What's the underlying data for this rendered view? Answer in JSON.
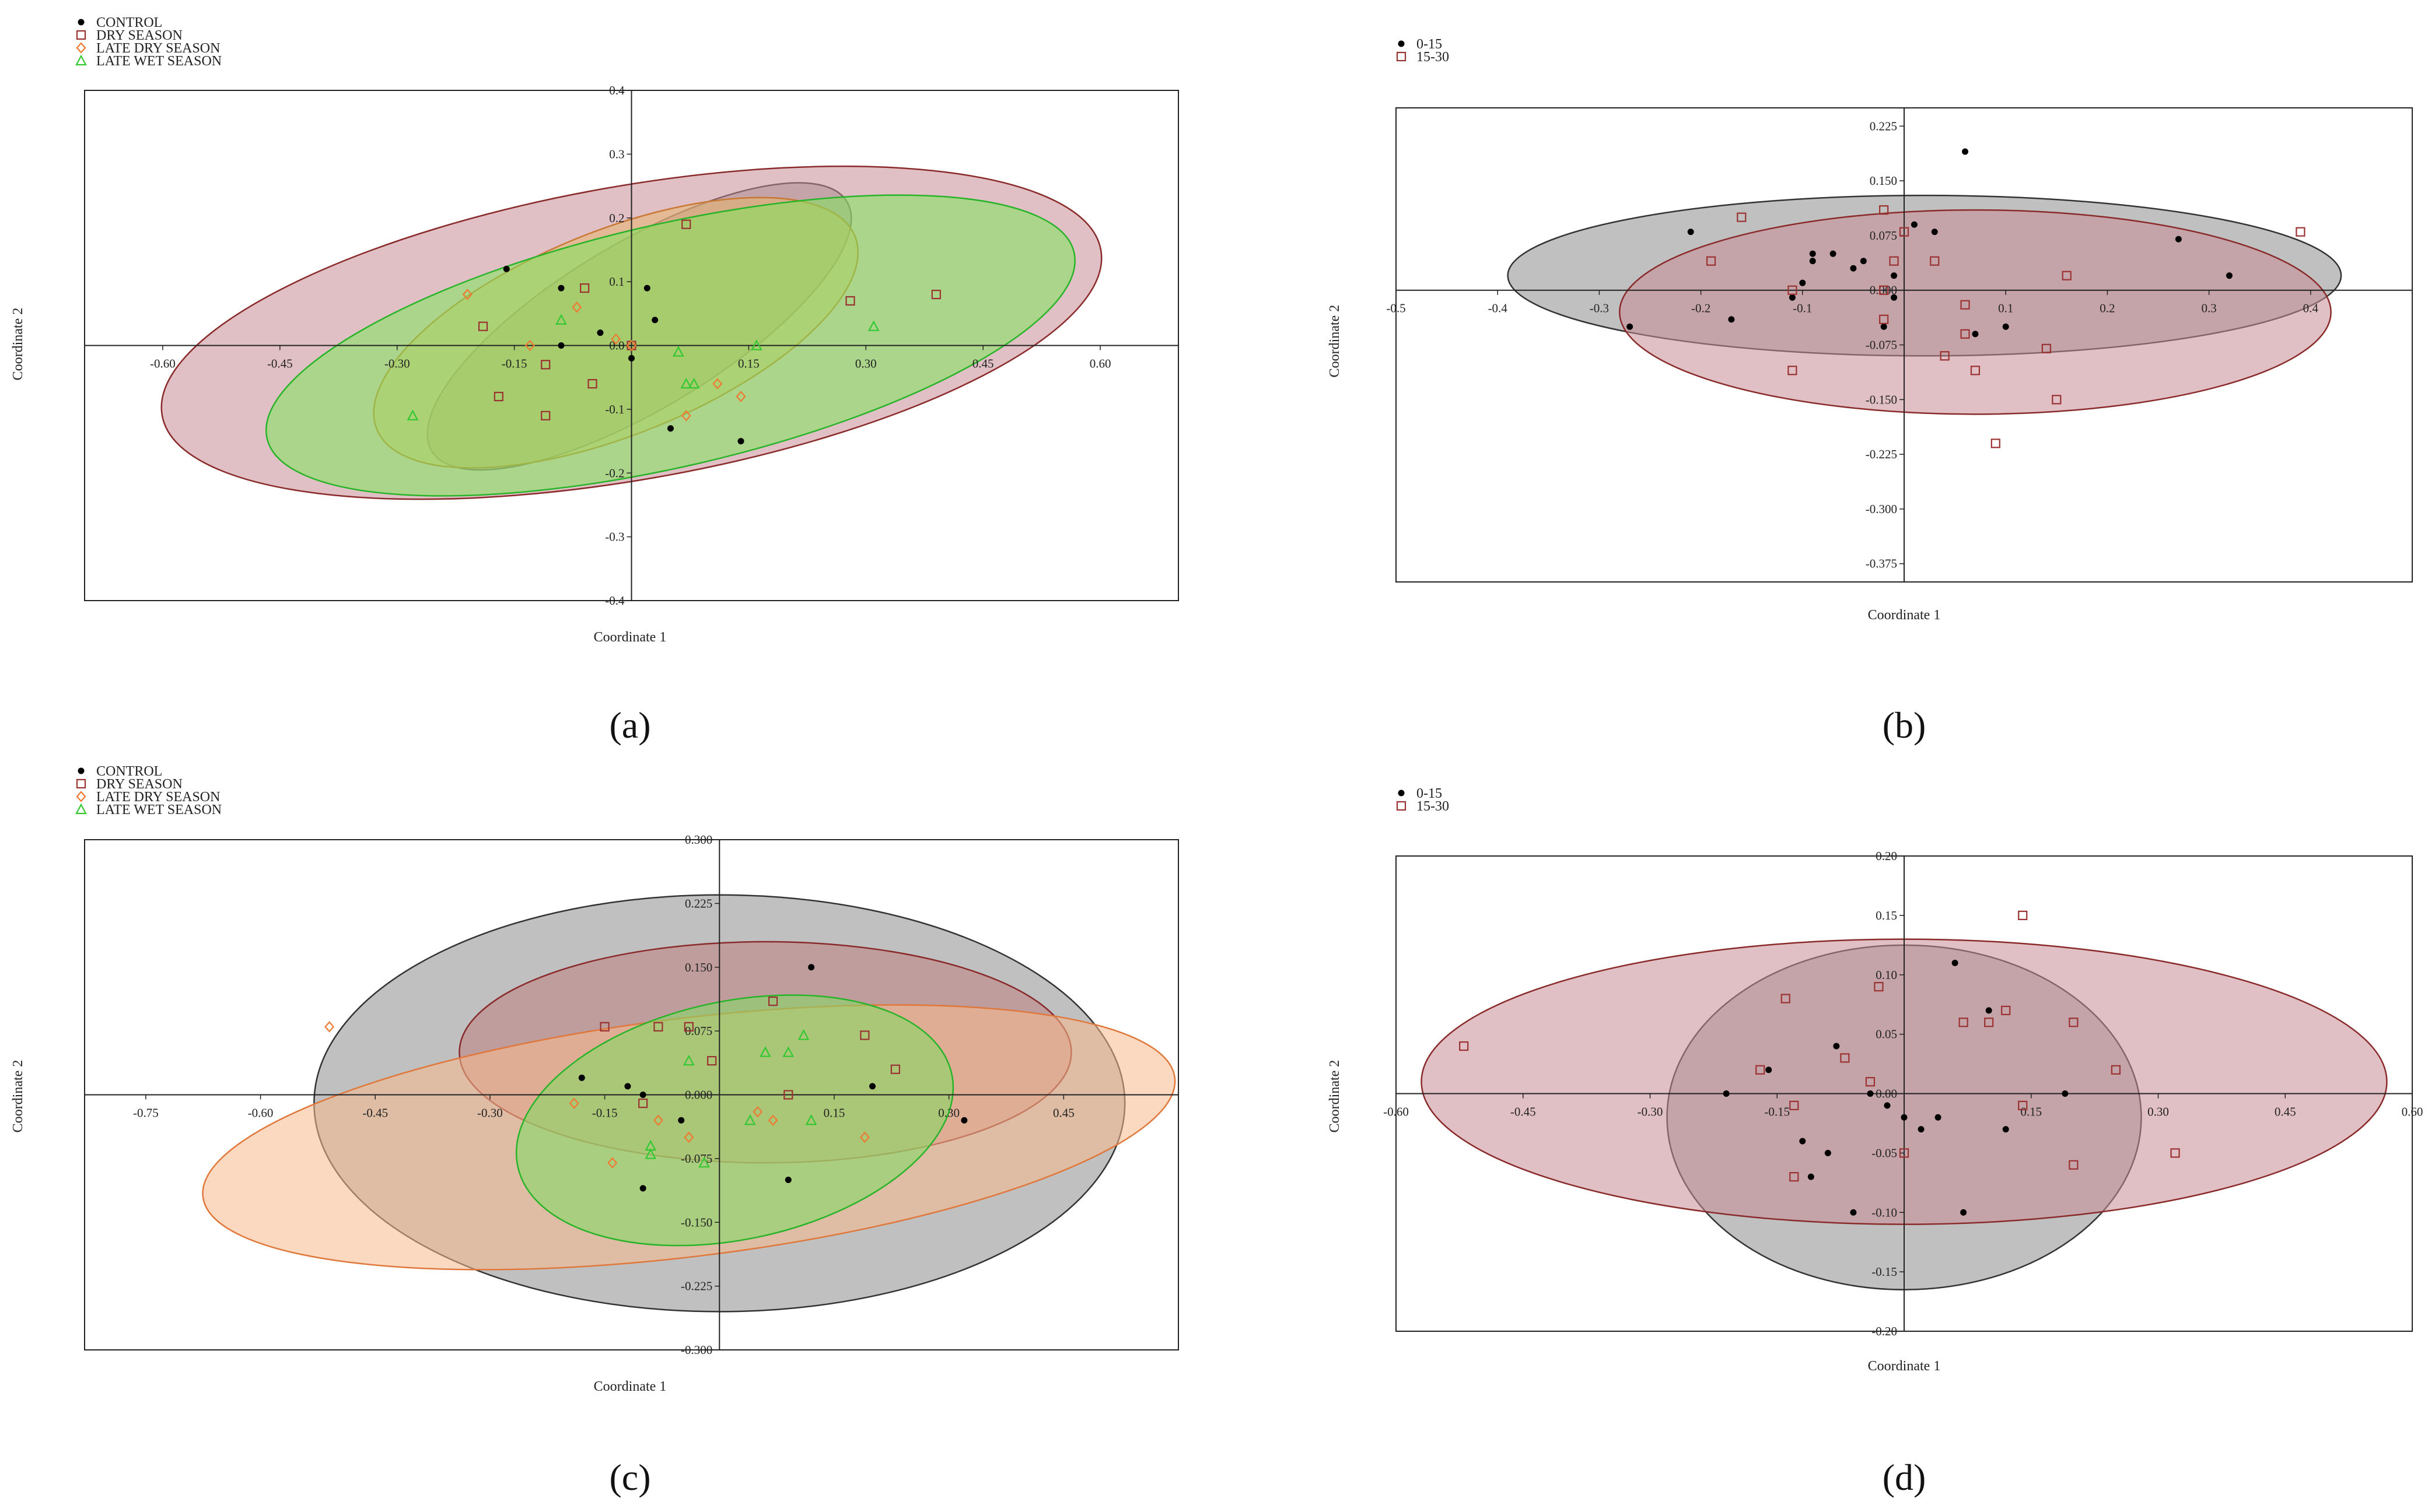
{
  "figure": {
    "panels": [
      "a",
      "b",
      "c",
      "d"
    ]
  },
  "chart_data": [
    {
      "id": "a",
      "caption": "(a)",
      "type": "scatter",
      "xlabel": "Coordinate 1",
      "ylabel": "Coordinate 2",
      "xlim": [
        -0.7,
        0.7
      ],
      "ylim": [
        -0.4,
        0.4
      ],
      "xticks": [
        -0.6,
        -0.45,
        -0.3,
        -0.15,
        0.15,
        0.3,
        0.45,
        0.6
      ],
      "xtick_labels": [
        "-0.60",
        "-0.45",
        "-0.30",
        "-0.15",
        "0.15",
        "0.30",
        "0.45",
        "0.60"
      ],
      "yticks": [
        0.4,
        0.3,
        0.2,
        0.1,
        0.0,
        -0.1,
        -0.2,
        -0.3,
        -0.4
      ],
      "ytick_labels": [
        "0.4",
        "0.3",
        "0.2",
        "0.1",
        "0.0",
        "-0.1",
        "-0.2",
        "-0.3",
        "-0.4"
      ],
      "legend": {
        "position": "top-left",
        "entries": [
          "CONTROL",
          "DRY SEASON",
          "LATE DRY SEASON",
          "LATE WET SEASON"
        ]
      },
      "series": [
        {
          "name": "CONTROL",
          "marker": "dot",
          "color": "#000000",
          "ellipse": {
            "cx": 0.01,
            "cy": 0.03,
            "rx": 0.31,
            "ry": 0.13,
            "angle": -31,
            "fill": "#8c8c8c",
            "stroke": "#333333"
          },
          "points": [
            [
              -0.16,
              0.12
            ],
            [
              -0.09,
              0.09
            ],
            [
              -0.09,
              0.0
            ],
            [
              -0.04,
              0.02
            ],
            [
              0.0,
              -0.02
            ],
            [
              0.02,
              0.09
            ],
            [
              0.03,
              0.04
            ],
            [
              0.05,
              -0.13
            ],
            [
              0.14,
              -0.15
            ]
          ]
        },
        {
          "name": "DRY SEASON",
          "marker": "square",
          "color": "#9b3232",
          "ellipse": {
            "cx": 0.0,
            "cy": 0.02,
            "rx": 0.61,
            "ry": 0.23,
            "angle": -10,
            "fill": "#c88c96",
            "stroke": "#8a2a2a"
          },
          "points": [
            [
              -0.19,
              0.03
            ],
            [
              -0.17,
              -0.08
            ],
            [
              -0.11,
              -0.03
            ],
            [
              -0.11,
              -0.11
            ],
            [
              -0.06,
              0.09
            ],
            [
              -0.05,
              -0.06
            ],
            [
              0.0,
              0.0
            ],
            [
              0.07,
              0.19
            ],
            [
              0.28,
              0.07
            ],
            [
              0.39,
              0.08
            ]
          ]
        },
        {
          "name": "LATE DRY SEASON",
          "marker": "diamond",
          "color": "#f07830",
          "ellipse": {
            "cx": -0.02,
            "cy": 0.02,
            "rx": 0.33,
            "ry": 0.16,
            "angle": -22,
            "fill": "#e6b46e",
            "stroke": "#c87832"
          },
          "points": [
            [
              -0.21,
              0.08
            ],
            [
              -0.13,
              0.0
            ],
            [
              -0.07,
              0.06
            ],
            [
              -0.02,
              0.01
            ],
            [
              0.0,
              0.0
            ],
            [
              0.07,
              -0.11
            ],
            [
              0.11,
              -0.06
            ],
            [
              0.14,
              -0.08
            ]
          ]
        },
        {
          "name": "LATE WET SEASON",
          "marker": "triangle",
          "color": "#32c832",
          "ellipse": {
            "cx": 0.05,
            "cy": 0.0,
            "rx": 0.53,
            "ry": 0.19,
            "angle": -13,
            "fill": "#7ee65a",
            "stroke": "#28b428"
          },
          "points": [
            [
              -0.28,
              -0.11
            ],
            [
              -0.09,
              0.04
            ],
            [
              0.06,
              -0.01
            ],
            [
              0.07,
              -0.06
            ],
            [
              0.08,
              -0.06
            ],
            [
              0.16,
              0.0
            ],
            [
              0.31,
              0.03
            ]
          ]
        }
      ]
    },
    {
      "id": "b",
      "caption": "(b)",
      "type": "scatter",
      "xlabel": "Coordinate 1",
      "ylabel": "Coordinate 2",
      "xlim": [
        -0.5,
        0.5
      ],
      "ylim": [
        -0.4,
        0.25
      ],
      "xticks": [
        -0.5,
        -0.4,
        -0.3,
        -0.2,
        -0.1,
        0.1,
        0.2,
        0.3,
        0.4
      ],
      "xtick_labels": [
        "-0.5",
        "-0.4",
        "-0.3",
        "-0.2",
        "-0.1",
        "0.1",
        "0.2",
        "0.3",
        "0.4"
      ],
      "yticks": [
        0.225,
        0.15,
        0.075,
        0.0,
        -0.075,
        -0.15,
        -0.225,
        -0.3,
        -0.375
      ],
      "ytick_labels": [
        "0.225",
        "0.150",
        "0.075",
        "0.000",
        "-0.075",
        "-0.150",
        "-0.225",
        "-0.300",
        "-0.375"
      ],
      "legend": {
        "position": "top-left",
        "entries": [
          "0-15",
          "15-30"
        ]
      },
      "series": [
        {
          "name": "0-15",
          "marker": "dot",
          "color": "#000000",
          "ellipse": {
            "cx": 0.02,
            "cy": 0.02,
            "rx": 0.41,
            "ry": 0.11,
            "angle": 0,
            "fill": "#8c8c8c",
            "stroke": "#333333"
          },
          "points": [
            [
              -0.27,
              -0.05
            ],
            [
              -0.21,
              0.08
            ],
            [
              -0.17,
              -0.04
            ],
            [
              -0.11,
              -0.01
            ],
            [
              -0.1,
              0.01
            ],
            [
              -0.09,
              0.05
            ],
            [
              -0.09,
              0.04
            ],
            [
              -0.07,
              0.05
            ],
            [
              -0.05,
              0.03
            ],
            [
              -0.04,
              0.04
            ],
            [
              -0.01,
              0.02
            ],
            [
              -0.02,
              -0.05
            ],
            [
              -0.01,
              -0.01
            ],
            [
              0.01,
              0.09
            ],
            [
              0.03,
              0.08
            ],
            [
              0.06,
              0.19
            ],
            [
              0.07,
              -0.06
            ],
            [
              0.1,
              -0.05
            ],
            [
              0.27,
              0.07
            ],
            [
              0.32,
              0.02
            ]
          ]
        },
        {
          "name": "15-30",
          "marker": "square",
          "color": "#9b3232",
          "ellipse": {
            "cx": 0.07,
            "cy": -0.03,
            "rx": 0.35,
            "ry": 0.14,
            "angle": 0,
            "fill": "#c88c96",
            "stroke": "#8a2a2a"
          },
          "points": [
            [
              -0.19,
              0.04
            ],
            [
              -0.16,
              0.1
            ],
            [
              -0.11,
              -0.11
            ],
            [
              -0.11,
              0.0
            ],
            [
              -0.02,
              -0.04
            ],
            [
              -0.02,
              0.11
            ],
            [
              -0.01,
              0.04
            ],
            [
              -0.02,
              0.0
            ],
            [
              0.0,
              0.08
            ],
            [
              0.03,
              0.04
            ],
            [
              0.04,
              -0.09
            ],
            [
              0.06,
              -0.02
            ],
            [
              0.06,
              -0.06
            ],
            [
              0.07,
              -0.11
            ],
            [
              0.09,
              -0.21
            ],
            [
              0.14,
              -0.08
            ],
            [
              0.15,
              -0.15
            ],
            [
              0.16,
              0.02
            ],
            [
              0.39,
              0.08
            ]
          ]
        }
      ]
    },
    {
      "id": "c",
      "caption": "(c)",
      "type": "scatter",
      "xlabel": "Coordinate 1",
      "ylabel": "Coordinate 2",
      "xlim": [
        -0.83,
        0.6
      ],
      "ylim": [
        -0.3,
        0.3
      ],
      "xticks": [
        -0.75,
        -0.6,
        -0.45,
        -0.3,
        -0.15,
        0.15,
        0.3,
        0.45
      ],
      "xtick_labels": [
        "-0.75",
        "-0.60",
        "-0.45",
        "-0.30",
        "-0.15",
        "0.15",
        "0.30",
        "0.45"
      ],
      "yticks": [
        0.3,
        0.225,
        0.15,
        0.075,
        0.0,
        -0.075,
        -0.15,
        -0.225,
        -0.3
      ],
      "ytick_labels": [
        "0.300",
        "0.225",
        "0.150",
        "0.075",
        "0.000",
        "-0.075",
        "-0.150",
        "-0.225",
        "-0.300"
      ],
      "legend": {
        "position": "top-left",
        "entries": [
          "CONTROL",
          "DRY SEASON",
          "LATE DRY SEASON",
          "LATE WET SEASON"
        ]
      },
      "series": [
        {
          "name": "CONTROL",
          "marker": "dot",
          "color": "#000000",
          "ellipse": {
            "cx": 0.0,
            "cy": -0.01,
            "rx": 0.53,
            "ry": 0.245,
            "angle": 0,
            "fill": "#8c8c8c",
            "stroke": "#333333"
          },
          "points": [
            [
              -0.18,
              0.02
            ],
            [
              -0.12,
              0.01
            ],
            [
              -0.1,
              0.0
            ],
            [
              -0.1,
              -0.11
            ],
            [
              -0.05,
              -0.03
            ],
            [
              0.09,
              -0.1
            ],
            [
              0.12,
              0.15
            ],
            [
              0.2,
              0.01
            ],
            [
              0.32,
              -0.03
            ]
          ]
        },
        {
          "name": "DRY SEASON",
          "marker": "square",
          "color": "#9b3232",
          "ellipse": {
            "cx": 0.06,
            "cy": 0.05,
            "rx": 0.4,
            "ry": 0.13,
            "angle": 0,
            "fill": "#c08080",
            "stroke": "#8a2a2a"
          },
          "points": [
            [
              -0.15,
              0.08
            ],
            [
              -0.08,
              0.08
            ],
            [
              -0.1,
              -0.01
            ],
            [
              -0.04,
              0.08
            ],
            [
              -0.01,
              0.04
            ],
            [
              0.07,
              0.11
            ],
            [
              0.09,
              0.0
            ],
            [
              0.19,
              0.07
            ],
            [
              0.23,
              0.03
            ]
          ]
        },
        {
          "name": "LATE DRY SEASON",
          "marker": "diamond",
          "color": "#f07830",
          "ellipse": {
            "cx": -0.04,
            "cy": -0.05,
            "rx": 0.64,
            "ry": 0.14,
            "angle": -7,
            "fill": "#f6b98c",
            "stroke": "#e0783c"
          },
          "points": [
            [
              -0.51,
              0.08
            ],
            [
              -0.19,
              -0.01
            ],
            [
              -0.14,
              -0.08
            ],
            [
              -0.08,
              -0.03
            ],
            [
              -0.04,
              -0.05
            ],
            [
              0.05,
              -0.02
            ],
            [
              0.07,
              -0.03
            ],
            [
              0.19,
              -0.05
            ]
          ]
        },
        {
          "name": "LATE WET SEASON",
          "marker": "triangle",
          "color": "#32c832",
          "ellipse": {
            "cx": 0.02,
            "cy": -0.03,
            "rx": 0.29,
            "ry": 0.14,
            "angle": -12,
            "fill": "#80dc60",
            "stroke": "#28b428"
          },
          "points": [
            [
              -0.09,
              -0.06
            ],
            [
              -0.09,
              -0.07
            ],
            [
              -0.04,
              0.04
            ],
            [
              -0.02,
              -0.08
            ],
            [
              0.04,
              -0.03
            ],
            [
              0.06,
              0.05
            ],
            [
              0.09,
              0.05
            ],
            [
              0.11,
              0.07
            ],
            [
              0.12,
              -0.03
            ]
          ]
        }
      ]
    },
    {
      "id": "d",
      "caption": "(d)",
      "type": "scatter",
      "xlabel": "Coordinate 1",
      "ylabel": "Coordinate 2",
      "xlim": [
        -0.6,
        0.6
      ],
      "ylim": [
        -0.2,
        0.2
      ],
      "xticks": [
        -0.6,
        -0.45,
        -0.3,
        -0.15,
        0.15,
        0.3,
        0.45,
        0.6
      ],
      "xtick_labels": [
        "-0.60",
        "-0.45",
        "-0.30",
        "-0.15",
        "0.15",
        "0.30",
        "0.45",
        "0.60"
      ],
      "yticks": [
        0.2,
        0.15,
        0.1,
        0.05,
        0.0,
        -0.05,
        -0.1,
        -0.15,
        -0.2
      ],
      "ytick_labels": [
        "0.20",
        "0.15",
        "0.10",
        "0.05",
        "0.00",
        "-0.05",
        "-0.10",
        "-0.15",
        "-0.20"
      ],
      "legend": {
        "position": "top-left",
        "entries": [
          "0-15",
          "15-30"
        ]
      },
      "series": [
        {
          "name": "0-15",
          "marker": "dot",
          "color": "#000000",
          "ellipse": {
            "cx": 0.0,
            "cy": -0.02,
            "rx": 0.28,
            "ry": 0.145,
            "angle": 0,
            "fill": "#8c8c8c",
            "stroke": "#333333"
          },
          "points": [
            [
              -0.21,
              0.0
            ],
            [
              -0.16,
              0.02
            ],
            [
              -0.12,
              -0.04
            ],
            [
              -0.11,
              -0.07
            ],
            [
              -0.09,
              -0.05
            ],
            [
              -0.08,
              0.04
            ],
            [
              -0.06,
              -0.1
            ],
            [
              -0.04,
              0.0
            ],
            [
              -0.02,
              -0.01
            ],
            [
              0.0,
              -0.02
            ],
            [
              0.02,
              -0.03
            ],
            [
              0.04,
              -0.02
            ],
            [
              0.06,
              0.11
            ],
            [
              0.07,
              -0.1
            ],
            [
              0.12,
              -0.03
            ],
            [
              0.1,
              0.07
            ],
            [
              0.19,
              0.0
            ]
          ]
        },
        {
          "name": "15-30",
          "marker": "square",
          "color": "#9b3232",
          "ellipse": {
            "cx": 0.0,
            "cy": 0.01,
            "rx": 0.57,
            "ry": 0.12,
            "angle": 0,
            "fill": "#c88c96",
            "stroke": "#8a2a2a"
          },
          "points": [
            [
              -0.52,
              0.04
            ],
            [
              -0.17,
              0.02
            ],
            [
              -0.14,
              0.08
            ],
            [
              -0.13,
              -0.01
            ],
            [
              -0.13,
              -0.07
            ],
            [
              -0.07,
              0.03
            ],
            [
              -0.04,
              0.01
            ],
            [
              -0.03,
              0.09
            ],
            [
              0.0,
              -0.05
            ],
            [
              0.07,
              0.06
            ],
            [
              0.1,
              0.06
            ],
            [
              0.12,
              0.07
            ],
            [
              0.14,
              -0.01
            ],
            [
              0.2,
              0.06
            ],
            [
              0.2,
              -0.06
            ],
            [
              0.25,
              0.02
            ],
            [
              0.32,
              -0.05
            ],
            [
              0.14,
              0.15
            ]
          ]
        }
      ]
    }
  ]
}
